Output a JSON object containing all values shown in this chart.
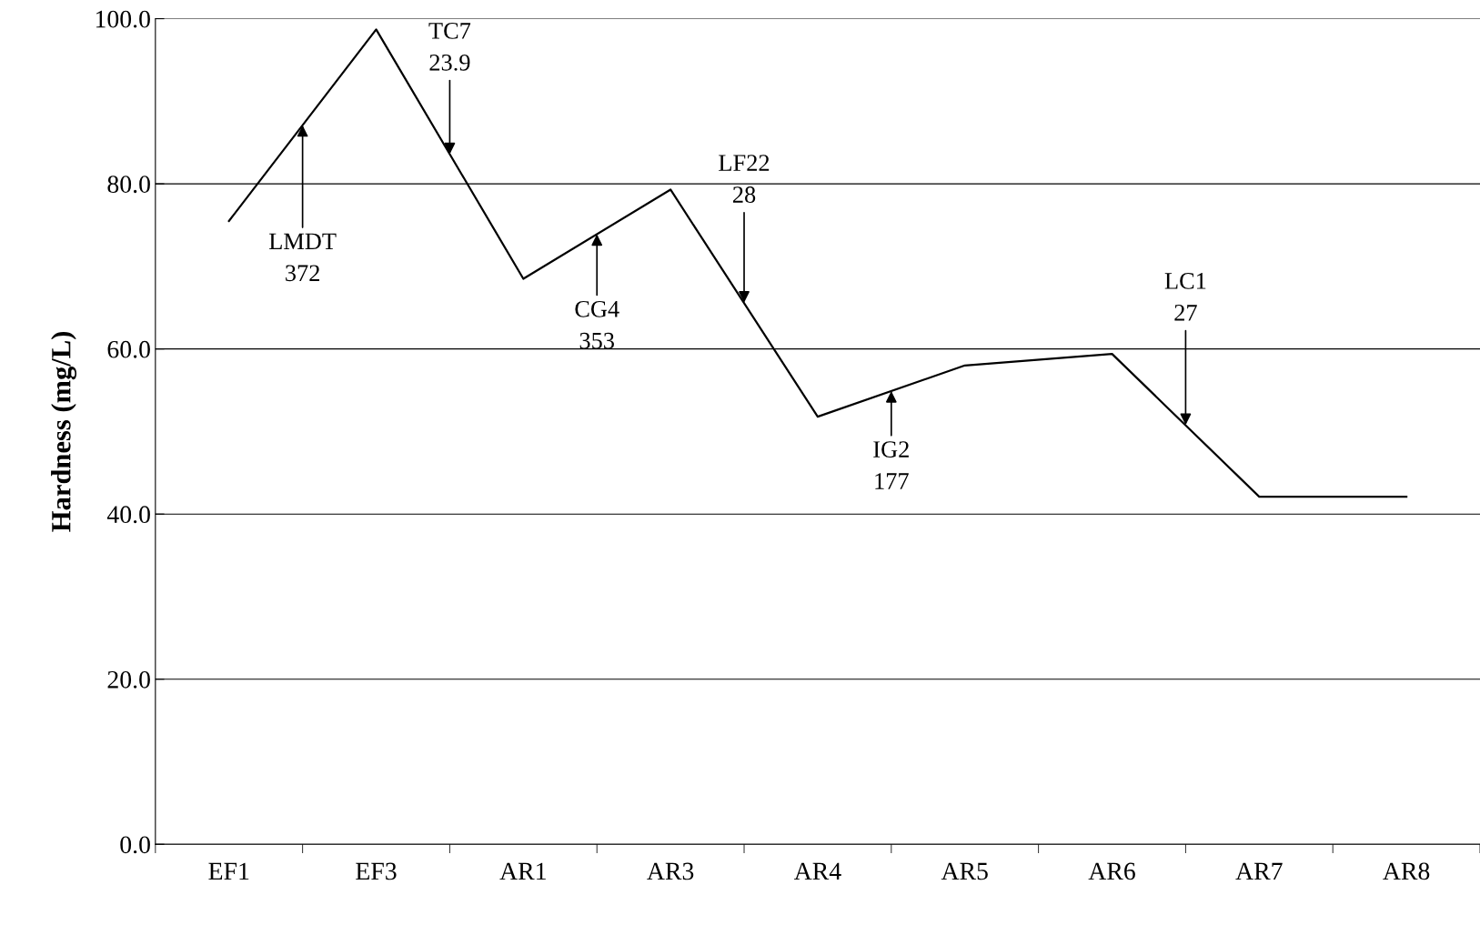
{
  "chart_data": {
    "type": "line",
    "ylabel": "Hardness (mg/L)",
    "categories": [
      "EF1",
      "EF3",
      "AR1",
      "AR3",
      "AR4",
      "AR5",
      "AR6",
      "AR7",
      "AR8"
    ],
    "series": [
      {
        "color": "#000000",
        "values": [
          75.5,
          98.7,
          68.5,
          79.3,
          51.8,
          58.0,
          59.4,
          42.1,
          42.1
        ]
      }
    ],
    "ylim": [
      0,
      100
    ],
    "yticks": [
      {
        "value": 0,
        "label": "0.0"
      },
      {
        "value": 20,
        "label": "20.0"
      },
      {
        "value": 40,
        "label": "40.0"
      },
      {
        "value": 60,
        "label": "60.0"
      },
      {
        "value": 80,
        "label": "80.0"
      },
      {
        "value": 100,
        "label": "100.0"
      }
    ],
    "grid": "y",
    "marker": "none",
    "line_style": "solid",
    "annotations": [
      {
        "text": "LMDT\n372",
        "y": 87.1
      },
      {
        "text": "TC7\n23.9",
        "y": 83.6
      },
      {
        "text": "CG4\n353",
        "y": 73.9
      },
      {
        "text": "LF22\n28",
        "y": 65.6
      },
      {
        "text": "IG2\n177",
        "y": 54.9
      },
      {
        "text": "LC1\n27",
        "y": 50.8
      }
    ]
  }
}
